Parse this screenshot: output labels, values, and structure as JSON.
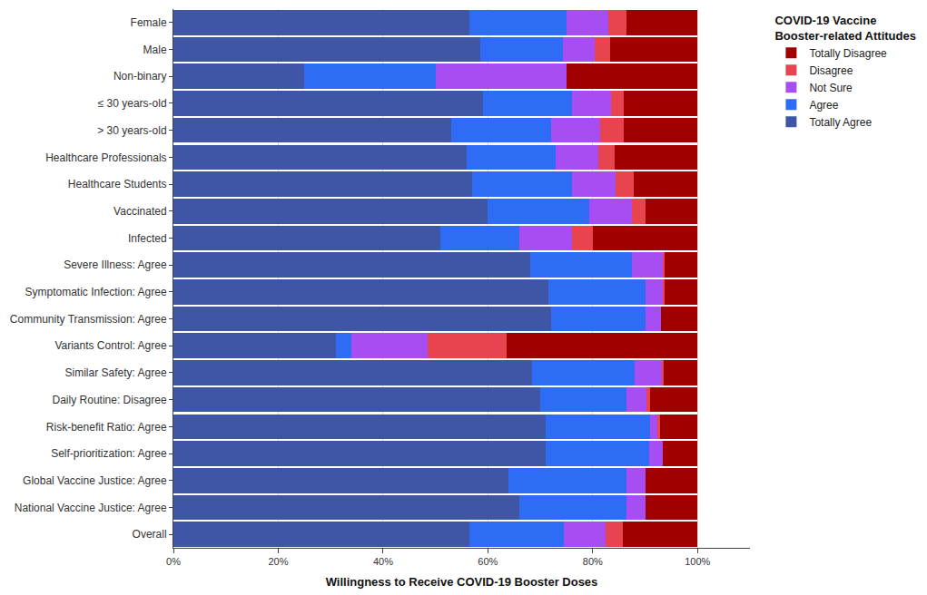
{
  "chart_data": {
    "type": "bar",
    "orientation": "horizontal",
    "stacked": true,
    "grid": true,
    "legend": "top right",
    "legend_title": "COVID-19 Vaccine Booster-related Attitudes",
    "x_label": "Willingness to Receive COVID-19 Booster Doses",
    "xlim": [
      0,
      110
    ],
    "xticks": [
      {
        "value": 0,
        "label": "0%"
      },
      {
        "value": 20,
        "label": "20%"
      },
      {
        "value": 40,
        "label": "40%"
      },
      {
        "value": 60,
        "label": "60%"
      },
      {
        "value": 80,
        "label": "80%"
      },
      {
        "value": 100,
        "label": "100%"
      }
    ],
    "categories": [
      "Female",
      "Male",
      "Non-binary",
      "≤ 30 years-old",
      "> 30 years-old",
      "Healthcare Professionals",
      "Healthcare Students",
      "Vaccinated",
      "Infected",
      "Severe Illness: Agree",
      "Symptomatic Infection: Agree",
      "Community Transmission: Agree",
      "Variants Control: Agree",
      "Similar Safety: Agree",
      "Daily Routine: Disagree",
      "Risk-benefit Ratio: Agree",
      "Self-prioritization: Agree",
      "Global Vaccine Justice: Agree",
      "National Vaccine Justice: Agree",
      "Overall"
    ],
    "series": [
      {
        "name": "Totally Agree",
        "color": "#3f56a6",
        "values": [
          56.5,
          58.5,
          25,
          59,
          53,
          56,
          57,
          60,
          51,
          68,
          71.5,
          72,
          31,
          68.5,
          70,
          71,
          71,
          64,
          66,
          56.5
        ]
      },
      {
        "name": "Agree",
        "color": "#2f6cf6",
        "values": [
          18.5,
          15.8,
          25,
          17,
          19,
          17,
          19,
          19.3,
          15,
          19.5,
          18.5,
          18,
          3,
          19.5,
          16.5,
          20,
          19.8,
          22.5,
          20.5,
          18
        ]
      },
      {
        "name": "Not Sure",
        "color": "#a64ef2",
        "values": [
          8,
          6,
          25,
          7.5,
          9.5,
          8,
          8.3,
          8.2,
          10,
          5.8,
          3.5,
          3,
          14.5,
          5.2,
          3.8,
          1.5,
          2.5,
          3.5,
          3.6,
          8
        ]
      },
      {
        "name": "Disagree",
        "color": "#e8444f",
        "values": [
          3.5,
          3,
          0,
          2.5,
          4.5,
          3.2,
          3.5,
          2.5,
          4,
          0.5,
          0.3,
          0,
          15,
          0.3,
          0.7,
          0.3,
          0,
          0,
          0,
          3.3
        ]
      },
      {
        "name": "Totally Disagree",
        "color": "#a10000",
        "values": [
          13.5,
          16.7,
          25,
          14,
          14,
          15.8,
          12.2,
          10,
          20,
          6.2,
          6.2,
          7,
          36.5,
          6.5,
          9,
          7.2,
          6.7,
          10,
          9.9,
          14.2
        ]
      }
    ]
  }
}
